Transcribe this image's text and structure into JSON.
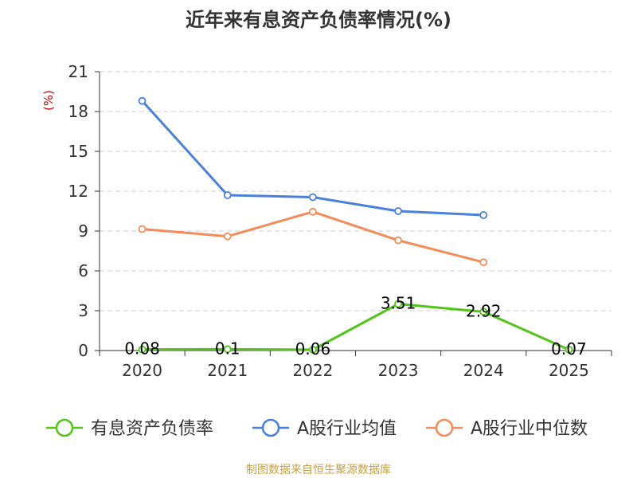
{
  "chart_data": {
    "type": "line",
    "title": "近年来有息资产负债率情况(%)",
    "ylabel": "(%)",
    "xlabel": "",
    "categories": [
      "2020",
      "2021",
      "2022",
      "2023",
      "2024",
      "2025"
    ],
    "yticks": [
      "0",
      "3",
      "6",
      "9",
      "12",
      "15",
      "18",
      "21"
    ],
    "ylim": [
      0,
      21
    ],
    "grid": true,
    "legend_position": "bottom",
    "series": [
      {
        "name": "有息资产负债率",
        "color": "#52c41a",
        "values": [
          0.08,
          0.1,
          0.06,
          3.51,
          2.92,
          0.07
        ],
        "labels": [
          "0.08",
          "0.1",
          "0.06",
          "3.51",
          "2.92",
          "0.07"
        ]
      },
      {
        "name": "A股行业均值",
        "color": "#4a7fdc",
        "values": [
          18.8,
          11.7,
          11.55,
          10.5,
          10.2,
          null
        ],
        "labels": []
      },
      {
        "name": "A股行业中位数",
        "color": "#f28c5a",
        "values": [
          9.15,
          8.6,
          10.45,
          8.3,
          6.65,
          null
        ],
        "labels": []
      }
    ]
  },
  "source_note": "制图数据来自恒生聚源数据库",
  "colors": {
    "title": "#333333",
    "ylabel": "#cc0000",
    "axis": "#333333",
    "grid": "#cccccc",
    "source_note": "#c8a040"
  }
}
